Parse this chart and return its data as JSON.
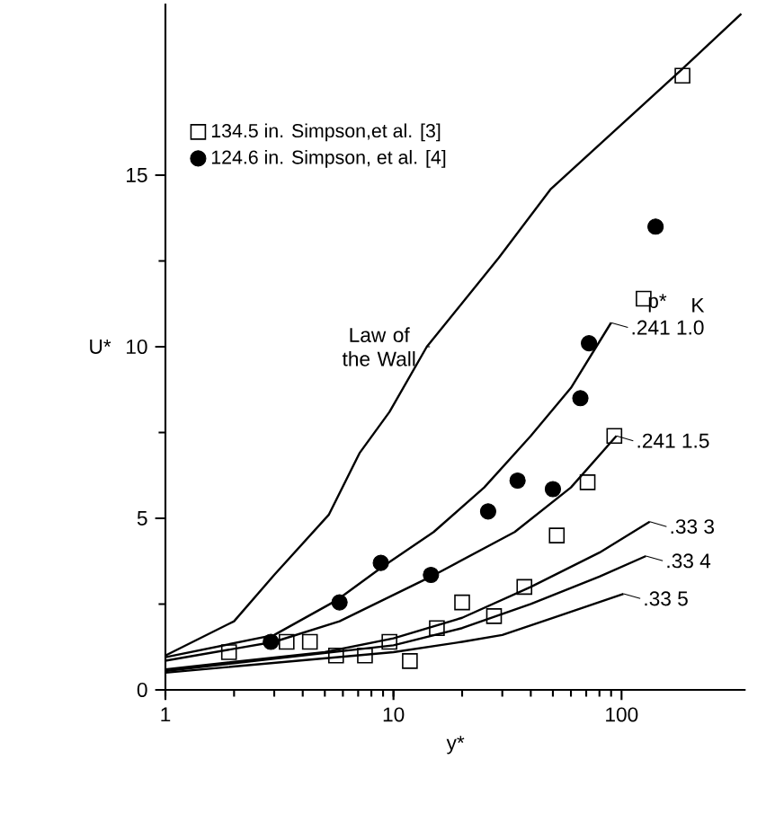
{
  "chart_data": {
    "type": "line",
    "xlabel": "y*",
    "ylabel": "U*",
    "log": "x",
    "xlim": [
      1,
      350
    ],
    "ylim": [
      0,
      20
    ],
    "xticks": [
      1,
      10,
      100
    ],
    "yticks": [
      0,
      5,
      10,
      15
    ],
    "legend": "top left",
    "series": [
      {
        "color": "#000000",
        "x": [
          1,
          2,
          3,
          5.2,
          7.1,
          9.6,
          14,
          29,
          49,
          185,
          335
        ],
        "values": [
          1.0,
          2.0,
          3.35,
          5.1,
          6.9,
          8.1,
          10.0,
          12.6,
          14.6,
          18.1,
          19.7
        ]
      },
      {
        "color": "#000000",
        "x": [
          1,
          3,
          5.6,
          9,
          15,
          25,
          40,
          60,
          90
        ],
        "values": [
          0.95,
          1.6,
          2.6,
          3.6,
          4.6,
          5.9,
          7.4,
          8.8,
          10.7
        ]
      },
      {
        "color": "#000000",
        "x": [
          1,
          3,
          5.8,
          14.6,
          34,
          60,
          95
        ],
        "values": [
          0.85,
          1.4,
          2.0,
          3.3,
          4.6,
          5.9,
          7.4
        ]
      },
      {
        "color": "#000000",
        "x": [
          1,
          5,
          10,
          20,
          40,
          80,
          133
        ],
        "values": [
          0.6,
          1.1,
          1.5,
          2.1,
          3.0,
          4.0,
          4.9
        ]
      },
      {
        "color": "#000000",
        "x": [
          1,
          10,
          20,
          40,
          80,
          128
        ],
        "values": [
          0.55,
          1.3,
          1.8,
          2.5,
          3.3,
          3.9
        ]
      },
      {
        "color": "#000000",
        "x": [
          1,
          10,
          20,
          30,
          50,
          102
        ],
        "values": [
          0.5,
          1.1,
          1.4,
          1.6,
          2.1,
          2.8
        ]
      },
      {
        "type": "scatter",
        "marker": "square",
        "name": "134.5 in. Simpson,et al. [3]",
        "color": "#000000",
        "x": [
          1.9,
          3.4,
          4.3,
          5.6,
          7.5,
          9.6,
          11.8,
          15.5,
          20,
          27.6,
          37.5,
          52,
          71,
          93,
          125,
          185
        ],
        "values": [
          1.1,
          1.4,
          1.4,
          1.0,
          1.0,
          1.4,
          0.84,
          1.8,
          2.55,
          2.15,
          3.0,
          4.5,
          6.05,
          7.4,
          11.4,
          17.9
        ]
      },
      {
        "type": "scatter",
        "marker": "circle",
        "name": "124.6 in. Simpson, et al. [4]",
        "color": "#000000",
        "x": [
          2.9,
          5.8,
          8.8,
          14.6,
          26,
          35,
          50,
          66,
          72,
          141
        ],
        "values": [
          1.4,
          2.55,
          3.7,
          3.35,
          5.2,
          6.1,
          5.85,
          8.5,
          10.1,
          13.5
        ]
      }
    ],
    "annotations": [
      {
        "text": "Law of the Wall",
        "x": 14,
        "y": 10.0
      },
      "p*",
      "K",
      {
        "text": ".241 1.0",
        "x": 90,
        "y": 10.7
      },
      {
        "text": ".241 1.5",
        "x": 95,
        "y": 7.4
      },
      {
        "text": ".33 3",
        "x": 133,
        "y": 4.9
      },
      {
        "text": ".33 4",
        "x": 128,
        "y": 3.9
      },
      {
        "text": ".33 5",
        "x": 102,
        "y": 2.8
      }
    ]
  }
}
